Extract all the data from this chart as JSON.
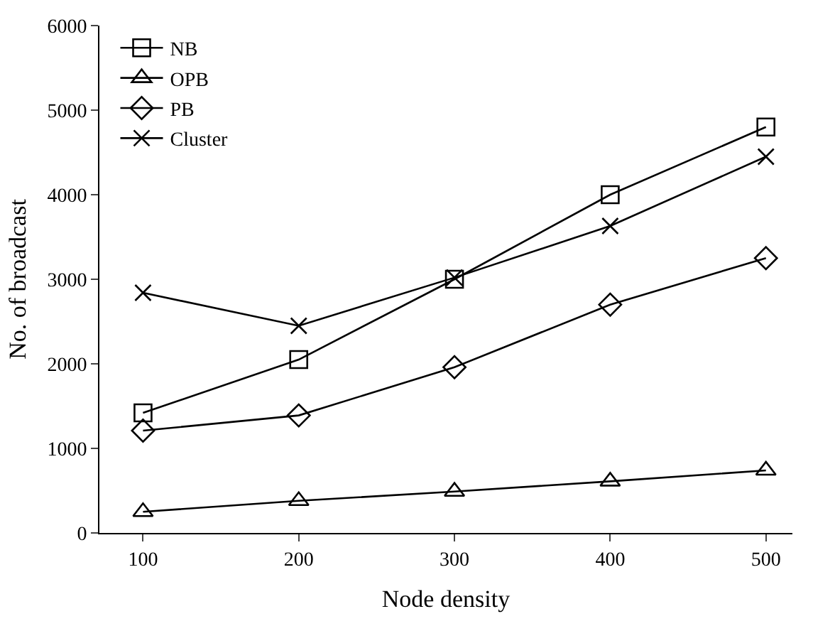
{
  "chart_data": {
    "type": "line",
    "xlabel": "Node density",
    "ylabel": "No. of broadcast",
    "x": [
      100,
      200,
      300,
      400,
      500
    ],
    "series": [
      {
        "name": "NB",
        "color": "#000000",
        "marker": "square",
        "values": [
          1420,
          2050,
          3000,
          4000,
          4800
        ]
      },
      {
        "name": "OPB",
        "color": "#000000",
        "marker": "triangle",
        "values": [
          250,
          380,
          490,
          610,
          740
        ]
      },
      {
        "name": "PB",
        "color": "#000000",
        "marker": "diamond",
        "values": [
          1210,
          1390,
          1960,
          2700,
          3250
        ]
      },
      {
        "name": "Cluster",
        "color": "#000000",
        "marker": "cross",
        "values": [
          2840,
          2450,
          3020,
          3630,
          4450
        ]
      }
    ],
    "xlim": [
      72,
      517
    ],
    "xticks": [
      100,
      200,
      300,
      400,
      500
    ],
    "ylim": [
      0,
      6000
    ],
    "yticks": [
      0,
      1000,
      2000,
      3000,
      4000,
      5000,
      6000
    ],
    "grid": false,
    "legend": "top left",
    "line_style": "solid"
  }
}
